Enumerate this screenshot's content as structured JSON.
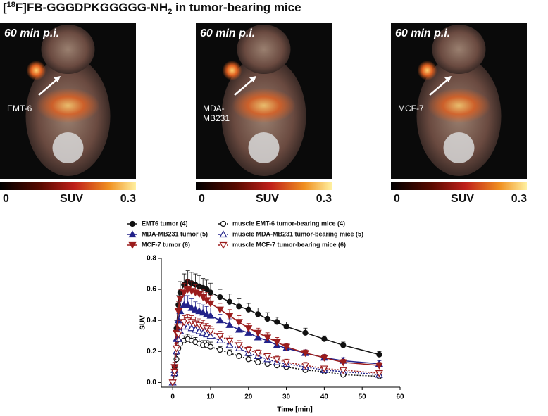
{
  "header": {
    "title_prefix": "[",
    "title_sup": "18",
    "title_mid": "F]FB-GGGDPKGGGGG-NH",
    "title_sub": "2",
    "title_end": " in tumor-bearing mice"
  },
  "panels": [
    {
      "label": "60 min p.i.",
      "tumor": [
        "EMT-6"
      ],
      "scale_min": 0,
      "scale_unit": "SUV",
      "scale_max": 0.3
    },
    {
      "label": "60 min p.i.",
      "tumor": [
        "MDA-",
        "MB231"
      ],
      "scale_min": 0,
      "scale_unit": "SUV",
      "scale_max": 0.3
    },
    {
      "label": "60 min p.i.",
      "tumor": [
        "MCF-7"
      ],
      "scale_min": 0,
      "scale_unit": "SUV",
      "scale_max": 0.3
    }
  ],
  "chart_data": {
    "type": "line",
    "xlabel": "Time [min]",
    "ylabel": "SUV",
    "x": [
      0,
      0.5,
      1,
      1.5,
      2,
      3,
      4,
      5,
      6,
      7,
      8,
      9,
      10,
      12.5,
      15,
      17.5,
      20,
      22.5,
      25,
      27.5,
      30,
      35,
      40,
      45,
      54.5
    ],
    "xlim": [
      -3,
      60
    ],
    "xticks": [
      0,
      10,
      20,
      30,
      40,
      50,
      60
    ],
    "ylim": [
      -0.03,
      0.8
    ],
    "yticks": [
      {
        "value": 0,
        "label": "0.0"
      },
      {
        "value": 0.2,
        "label": "0.2"
      },
      {
        "value": 0.4,
        "label": "0.4"
      },
      {
        "value": 0.6,
        "label": "0.6"
      },
      {
        "value": 0.8,
        "label": "0.8"
      }
    ],
    "series": [
      {
        "name": "EMT6 tumor (4)",
        "color": "#111111",
        "marker": "circle",
        "filled": true,
        "dashed": false,
        "values": [
          0,
          0.1,
          0.35,
          0.5,
          0.58,
          0.63,
          0.65,
          0.64,
          0.63,
          0.62,
          0.61,
          0.6,
          0.58,
          0.55,
          0.52,
          0.49,
          0.47,
          0.44,
          0.41,
          0.39,
          0.36,
          0.32,
          0.28,
          0.24,
          0.18
        ],
        "errors": [
          0.01,
          0.03,
          0.05,
          0.06,
          0.07,
          0.07,
          0.07,
          0.07,
          0.07,
          0.07,
          0.06,
          0.06,
          0.06,
          0.05,
          0.05,
          0.05,
          0.04,
          0.04,
          0.04,
          0.03,
          0.03,
          0.03,
          0.02,
          0.02,
          0.02
        ]
      },
      {
        "name": "MDA-MB231 tumor (5)",
        "color": "#22228a",
        "marker": "triangle-up",
        "filled": true,
        "dashed": false,
        "values": [
          0,
          0.08,
          0.28,
          0.4,
          0.46,
          0.5,
          0.5,
          0.48,
          0.47,
          0.46,
          0.45,
          0.44,
          0.43,
          0.4,
          0.37,
          0.34,
          0.32,
          0.29,
          0.27,
          0.24,
          0.22,
          0.19,
          0.16,
          0.14,
          0.12
        ],
        "errors": [
          0.01,
          0.03,
          0.05,
          0.06,
          0.06,
          0.06,
          0.06,
          0.06,
          0.05,
          0.05,
          0.05,
          0.05,
          0.05,
          0.04,
          0.04,
          0.04,
          0.04,
          0.03,
          0.03,
          0.03,
          0.03,
          0.02,
          0.02,
          0.02,
          0.02
        ]
      },
      {
        "name": "MCF-7 tumor (6)",
        "color": "#9b1c1c",
        "marker": "triangle-down",
        "filled": true,
        "dashed": false,
        "values": [
          0,
          0.1,
          0.32,
          0.46,
          0.54,
          0.58,
          0.6,
          0.59,
          0.58,
          0.57,
          0.55,
          0.53,
          0.51,
          0.47,
          0.43,
          0.39,
          0.35,
          0.32,
          0.29,
          0.26,
          0.23,
          0.19,
          0.16,
          0.13,
          0.11
        ],
        "errors": [
          0.01,
          0.03,
          0.05,
          0.06,
          0.06,
          0.06,
          0.06,
          0.06,
          0.05,
          0.05,
          0.05,
          0.05,
          0.05,
          0.04,
          0.04,
          0.04,
          0.03,
          0.03,
          0.03,
          0.03,
          0.02,
          0.02,
          0.02,
          0.02,
          0.02
        ]
      },
      {
        "name": "muscle EMT-6 tumor-bearing mice (4)",
        "color": "#111111",
        "marker": "circle",
        "filled": false,
        "dashed": true,
        "values": [
          0,
          0.05,
          0.15,
          0.22,
          0.25,
          0.27,
          0.28,
          0.27,
          0.26,
          0.25,
          0.24,
          0.24,
          0.23,
          0.21,
          0.19,
          0.17,
          0.15,
          0.13,
          0.12,
          0.11,
          0.1,
          0.08,
          0.07,
          0.05,
          0.04
        ],
        "errors": [
          0.01,
          0.02,
          0.03,
          0.03,
          0.03,
          0.03,
          0.03,
          0.03,
          0.03,
          0.03,
          0.03,
          0.03,
          0.03,
          0.02,
          0.02,
          0.02,
          0.02,
          0.02,
          0.02,
          0.02,
          0.02,
          0.01,
          0.01,
          0.01,
          0.01
        ]
      },
      {
        "name": "muscle MDA-MB231 tumor-bearing mice (5)",
        "color": "#22228a",
        "marker": "triangle-up",
        "filled": false,
        "dashed": true,
        "values": [
          0,
          0.06,
          0.2,
          0.28,
          0.33,
          0.36,
          0.36,
          0.35,
          0.34,
          0.33,
          0.32,
          0.31,
          0.3,
          0.27,
          0.24,
          0.22,
          0.19,
          0.17,
          0.15,
          0.13,
          0.12,
          0.1,
          0.08,
          0.07,
          0.05
        ],
        "errors": [
          0.01,
          0.02,
          0.03,
          0.04,
          0.04,
          0.04,
          0.04,
          0.04,
          0.04,
          0.04,
          0.03,
          0.03,
          0.03,
          0.03,
          0.03,
          0.03,
          0.02,
          0.02,
          0.02,
          0.02,
          0.02,
          0.02,
          0.01,
          0.01,
          0.01
        ]
      },
      {
        "name": "muscle MCF-7 tumor-bearing mice (6)",
        "color": "#9b1c1c",
        "marker": "triangle-down",
        "filled": false,
        "dashed": true,
        "values": [
          0,
          0.07,
          0.22,
          0.31,
          0.36,
          0.39,
          0.4,
          0.39,
          0.38,
          0.37,
          0.36,
          0.35,
          0.33,
          0.3,
          0.27,
          0.24,
          0.21,
          0.19,
          0.17,
          0.15,
          0.13,
          0.11,
          0.09,
          0.08,
          0.06
        ],
        "errors": [
          0.01,
          0.02,
          0.03,
          0.04,
          0.04,
          0.04,
          0.04,
          0.04,
          0.04,
          0.04,
          0.04,
          0.03,
          0.03,
          0.03,
          0.03,
          0.03,
          0.02,
          0.02,
          0.02,
          0.02,
          0.02,
          0.02,
          0.01,
          0.01,
          0.01
        ]
      }
    ]
  }
}
